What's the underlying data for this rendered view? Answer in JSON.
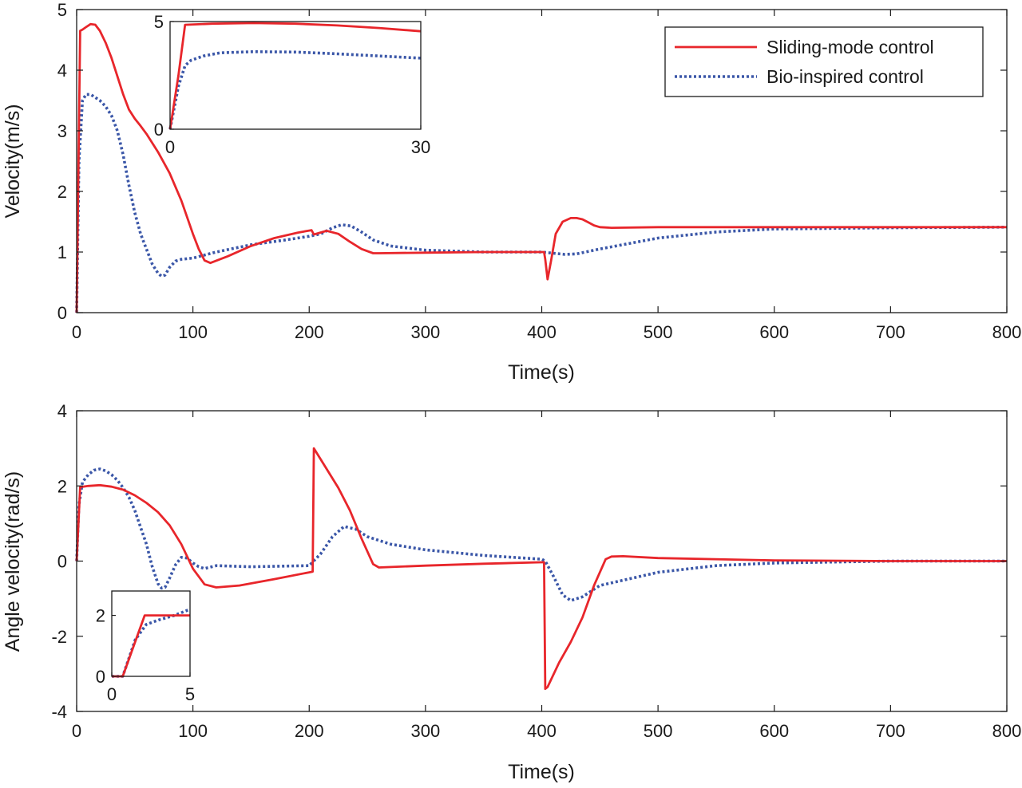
{
  "colors": {
    "sliding": "#e8262b",
    "bio": "#3b57a8",
    "axis": "#1a1a1a",
    "background": "#ffffff"
  },
  "chart_data": [
    {
      "type": "line",
      "name": "velocity",
      "xlabel": "Time(s)",
      "ylabel": "Velocity(m/s)",
      "xlim": [
        0,
        800
      ],
      "ylim": [
        0,
        5
      ],
      "xticks": [
        0,
        100,
        200,
        300,
        400,
        500,
        600,
        700,
        800
      ],
      "yticks": [
        0,
        1,
        2,
        3,
        4,
        5
      ],
      "legend": {
        "placement": "top-right",
        "entries": [
          "Sliding-mode control",
          "Bio-inspired control"
        ]
      },
      "series": [
        {
          "name": "Sliding-mode control",
          "style": "solid",
          "color": "#e8262b",
          "x": [
            0,
            3,
            5,
            8,
            12,
            16,
            20,
            25,
            30,
            35,
            40,
            45,
            50,
            55,
            60,
            70,
            80,
            90,
            100,
            105,
            110,
            115,
            130,
            150,
            170,
            190,
            202,
            204,
            215,
            225,
            235,
            245,
            255,
            260,
            300,
            350,
            402,
            403,
            405,
            408,
            412,
            418,
            425,
            430,
            435,
            440,
            445,
            450,
            460,
            500,
            550,
            600,
            700,
            800
          ],
          "y": [
            0,
            4.65,
            4.67,
            4.71,
            4.76,
            4.75,
            4.65,
            4.45,
            4.2,
            3.9,
            3.6,
            3.35,
            3.2,
            3.08,
            2.95,
            2.65,
            2.3,
            1.85,
            1.3,
            1.05,
            0.86,
            0.82,
            0.93,
            1.1,
            1.23,
            1.32,
            1.36,
            1.29,
            1.35,
            1.3,
            1.17,
            1.05,
            0.98,
            0.98,
            0.99,
            1.0,
            1.0,
            0.88,
            0.55,
            0.85,
            1.3,
            1.5,
            1.56,
            1.56,
            1.54,
            1.49,
            1.44,
            1.41,
            1.4,
            1.41,
            1.41,
            1.41,
            1.41,
            1.41
          ],
          "inset": {
            "xlim": [
              0,
              30
            ],
            "ylim": [
              0,
              5
            ],
            "x": [
              0,
              1,
              1.8,
              5,
              10,
              15,
              20,
              25,
              30
            ],
            "y": [
              0,
              2.5,
              4.85,
              4.9,
              4.93,
              4.9,
              4.82,
              4.7,
              4.55
            ]
          }
        },
        {
          "name": "Bio-inspired control",
          "style": "dotted",
          "color": "#3b57a8",
          "x": [
            0,
            2,
            5,
            8,
            12,
            16,
            20,
            25,
            30,
            35,
            40,
            45,
            50,
            55,
            60,
            65,
            70,
            73,
            76,
            80,
            85,
            90,
            100,
            120,
            150,
            180,
            200,
            210,
            220,
            228,
            236,
            245,
            255,
            270,
            300,
            350,
            400,
            410,
            420,
            430,
            450,
            500,
            550,
            600,
            700,
            800
          ],
          "y": [
            0,
            2.5,
            3.5,
            3.6,
            3.6,
            3.55,
            3.5,
            3.4,
            3.25,
            3.0,
            2.6,
            2.1,
            1.65,
            1.3,
            1.05,
            0.8,
            0.65,
            0.6,
            0.62,
            0.75,
            0.85,
            0.88,
            0.9,
            1.0,
            1.12,
            1.2,
            1.26,
            1.3,
            1.4,
            1.45,
            1.43,
            1.33,
            1.2,
            1.1,
            1.03,
            1.0,
            1.0,
            0.98,
            0.96,
            0.97,
            1.05,
            1.23,
            1.33,
            1.38,
            1.4,
            1.41
          ],
          "inset": {
            "xlim": [
              0,
              30
            ],
            "ylim": [
              0,
              5
            ],
            "x": [
              0,
              1,
              1.8,
              2.5,
              4,
              6,
              10,
              15,
              20,
              25,
              30
            ],
            "y": [
              0,
              2.0,
              2.95,
              3.2,
              3.4,
              3.55,
              3.6,
              3.58,
              3.5,
              3.4,
              3.3
            ]
          }
        }
      ],
      "inset": {
        "xticks": [
          0,
          30
        ],
        "yticks": [
          0,
          5
        ]
      }
    },
    {
      "type": "line",
      "name": "angle-velocity",
      "xlabel": "Time(s)",
      "ylabel": "Angle velocity(rad/s)",
      "xlim": [
        0,
        800
      ],
      "ylim": [
        -4,
        4
      ],
      "xticks": [
        0,
        100,
        200,
        300,
        400,
        500,
        600,
        700,
        800
      ],
      "yticks": [
        -4,
        -2,
        0,
        2,
        4
      ],
      "series": [
        {
          "name": "Sliding-mode control",
          "style": "solid",
          "color": "#e8262b",
          "x": [
            0,
            3,
            10,
            20,
            30,
            40,
            50,
            60,
            70,
            80,
            90,
            100,
            110,
            120,
            140,
            170,
            200,
            203,
            204,
            215,
            225,
            235,
            245,
            255,
            260,
            300,
            350,
            402,
            403,
            405,
            415,
            425,
            435,
            445,
            455,
            460,
            470,
            500,
            600,
            700,
            800
          ],
          "y": [
            0,
            1.97,
            2.0,
            2.02,
            1.98,
            1.9,
            1.75,
            1.55,
            1.3,
            0.95,
            0.45,
            -0.2,
            -0.62,
            -0.7,
            -0.65,
            -0.48,
            -0.3,
            -0.28,
            3.0,
            2.45,
            1.95,
            1.35,
            0.6,
            -0.08,
            -0.17,
            -0.12,
            -0.07,
            -0.03,
            -3.4,
            -3.35,
            -2.7,
            -2.15,
            -1.5,
            -0.65,
            0.05,
            0.12,
            0.13,
            0.08,
            0.02,
            0.0,
            0.0
          ],
          "inset": {
            "xlim": [
              0,
              5
            ],
            "ylim": [
              0,
              2.8
            ],
            "x": [
              0,
              0.7,
              2.1,
              3,
              4,
              5
            ],
            "y": [
              0,
              0,
              2.0,
              2.0,
              2.0,
              2.0
            ]
          }
        },
        {
          "name": "Bio-inspired control",
          "style": "dotted",
          "color": "#3b57a8",
          "x": [
            0,
            2,
            5,
            10,
            15,
            20,
            25,
            30,
            35,
            40,
            45,
            50,
            55,
            60,
            65,
            70,
            73,
            76,
            80,
            85,
            90,
            95,
            100,
            105,
            110,
            120,
            150,
            200,
            210,
            220,
            230,
            240,
            250,
            270,
            300,
            350,
            400,
            403,
            410,
            418,
            425,
            435,
            450,
            500,
            550,
            600,
            700,
            800
          ],
          "y": [
            0,
            1.5,
            2.1,
            2.3,
            2.42,
            2.45,
            2.4,
            2.3,
            2.15,
            1.95,
            1.7,
            1.35,
            0.9,
            0.45,
            -0.15,
            -0.6,
            -0.72,
            -0.7,
            -0.45,
            -0.1,
            0.1,
            0.08,
            -0.05,
            -0.15,
            -0.2,
            -0.12,
            -0.15,
            -0.12,
            0.2,
            0.65,
            0.92,
            0.85,
            0.65,
            0.45,
            0.3,
            0.15,
            0.05,
            0.0,
            -0.4,
            -0.9,
            -1.05,
            -0.95,
            -0.65,
            -0.3,
            -0.12,
            -0.05,
            0.0,
            0.0
          ],
          "inset": {
            "xlim": [
              0,
              5
            ],
            "ylim": [
              0,
              2.8
            ],
            "x": [
              0,
              0.7,
              1.5,
              2.2,
              3,
              4,
              5
            ],
            "y": [
              0,
              0,
              1.2,
              1.7,
              1.85,
              2.0,
              2.2
            ]
          }
        }
      ],
      "inset": {
        "xticks": [
          0,
          5
        ],
        "yticks": [
          0,
          2
        ]
      }
    }
  ]
}
